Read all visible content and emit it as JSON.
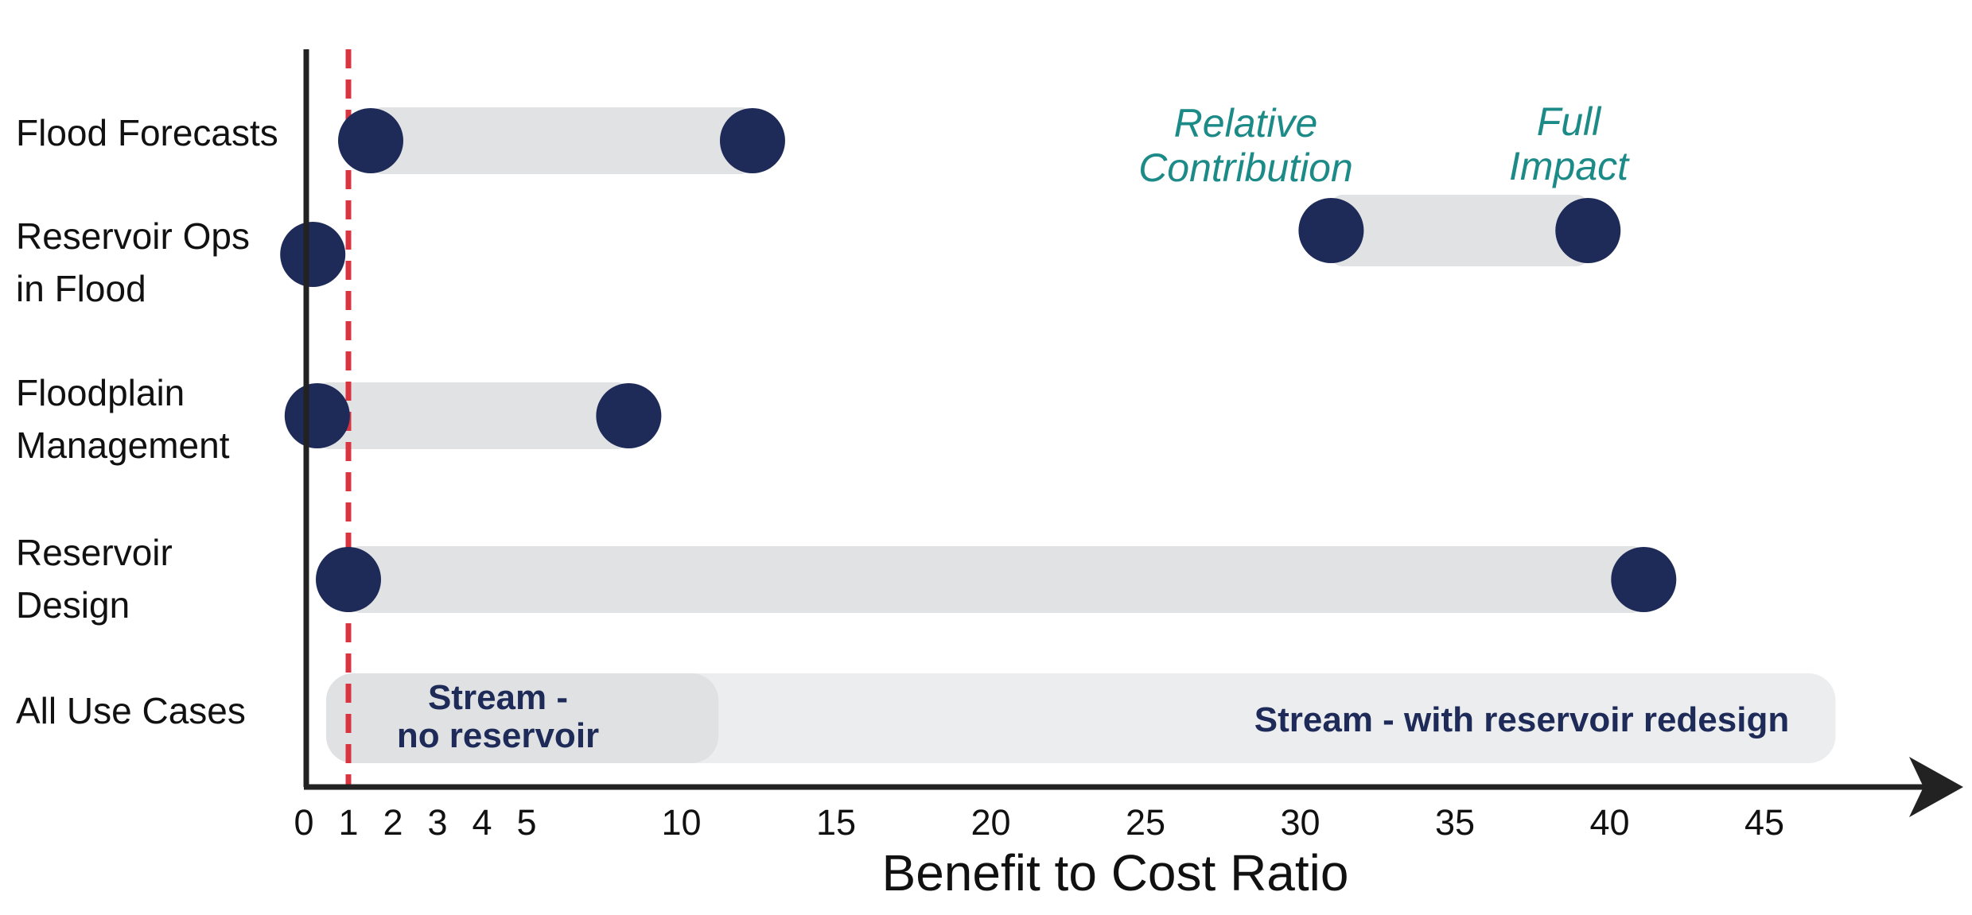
{
  "chart_data": {
    "type": "dumbbell",
    "xlabel": "Benefit to Cost Ratio",
    "xlim": [
      0,
      52
    ],
    "x_ticks": [
      0,
      1,
      2,
      3,
      4,
      5,
      10,
      15,
      20,
      25,
      30,
      35,
      40,
      45
    ],
    "reference_line": {
      "x": 1,
      "color": "#d9343f",
      "style": "dashed"
    },
    "categories": [
      {
        "label_lines": [
          "Flood Forecasts"
        ],
        "relative_contribution": 1.5,
        "full_impact": 12.3
      },
      {
        "label_lines": [
          "Reservoir Ops",
          "in Flood"
        ],
        "relative_contribution": 0.2,
        "full_impact": 0.2
      },
      {
        "label_lines": [
          "Floodplain",
          "Management"
        ],
        "relative_contribution": 0.3,
        "full_impact": 8.3
      },
      {
        "label_lines": [
          "Reservoir",
          "Design"
        ],
        "relative_contribution": 1.0,
        "full_impact": 41.1
      }
    ],
    "all_use_cases": {
      "label": "All Use Cases",
      "bands": [
        {
          "label_lines": [
            "Stream -",
            "no reservoir"
          ],
          "start": 0.5,
          "end": 11.2
        },
        {
          "label_lines": [
            "Stream - with reservoir redesign"
          ],
          "start": 0.5,
          "end": 47.3
        }
      ]
    },
    "legend": {
      "start_label_lines": [
        "Relative",
        "Contribution"
      ],
      "end_label_lines": [
        "Full",
        "Impact"
      ],
      "example_start": 31.0,
      "example_end": 39.3
    },
    "colors": {
      "dot": "#1e2b58",
      "bar": "#e1e2e4",
      "band_light": "#ecedee",
      "band_dark": "#e0e1e3",
      "legend_text": "#1c8a87",
      "band_text": "#1e2b58",
      "axis": "#222222"
    }
  }
}
